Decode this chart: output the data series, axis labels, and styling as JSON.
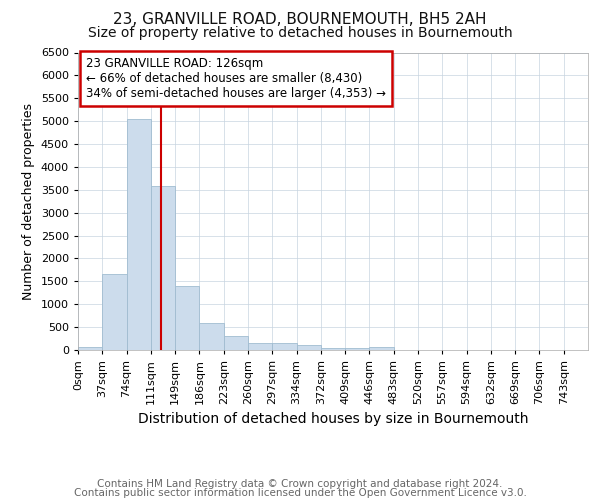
{
  "title": "23, GRANVILLE ROAD, BOURNEMOUTH, BH5 2AH",
  "subtitle": "Size of property relative to detached houses in Bournemouth",
  "xlabel": "Distribution of detached houses by size in Bournemouth",
  "ylabel": "Number of detached properties",
  "footnote1": "Contains HM Land Registry data © Crown copyright and database right 2024.",
  "footnote2": "Contains public sector information licensed under the Open Government Licence v3.0.",
  "bin_labels": [
    "0sqm",
    "37sqm",
    "74sqm",
    "111sqm",
    "149sqm",
    "186sqm",
    "223sqm",
    "260sqm",
    "297sqm",
    "334sqm",
    "372sqm",
    "409sqm",
    "446sqm",
    "483sqm",
    "520sqm",
    "557sqm",
    "594sqm",
    "632sqm",
    "669sqm",
    "706sqm",
    "743sqm"
  ],
  "bin_edges": [
    0,
    37,
    74,
    111,
    148,
    185,
    222,
    259,
    296,
    333,
    370,
    407,
    444,
    481,
    518,
    555,
    592,
    629,
    666,
    703,
    740,
    777
  ],
  "bar_values": [
    75,
    1650,
    5050,
    3580,
    1400,
    600,
    300,
    150,
    150,
    100,
    50,
    40,
    60,
    0,
    0,
    0,
    0,
    0,
    0,
    0,
    0
  ],
  "bar_color": "#ccdcec",
  "bar_edgecolor": "#a0bcd0",
  "vline_x": 126,
  "vline_color": "#cc0000",
  "ylim": [
    0,
    6500
  ],
  "annotation_title": "23 GRANVILLE ROAD: 126sqm",
  "annotation_line1": "← 66% of detached houses are smaller (8,430)",
  "annotation_line2": "34% of semi-detached houses are larger (4,353) →",
  "annotation_box_facecolor": "#ffffff",
  "annotation_box_edgecolor": "#cc0000",
  "title_fontsize": 11,
  "subtitle_fontsize": 10,
  "xlabel_fontsize": 10,
  "ylabel_fontsize": 9,
  "tick_fontsize": 8,
  "annotation_fontsize": 8.5,
  "footnote_fontsize": 7.5,
  "bg_color": "#ffffff",
  "grid_color": "#c8d4e0"
}
